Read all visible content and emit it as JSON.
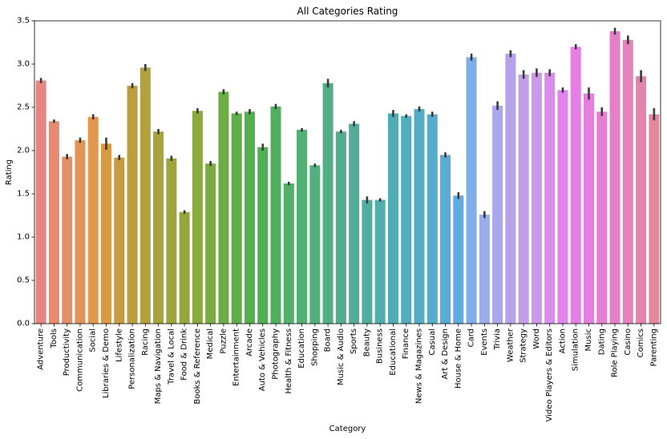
{
  "chart_data": {
    "type": "bar",
    "title": "All Categories Rating",
    "xlabel": "Category",
    "ylabel": "Rating",
    "ylim": [
      0,
      3.5
    ],
    "yticks": [
      "0.0",
      "0.5",
      "1.0",
      "1.5",
      "2.0",
      "2.5",
      "3.0",
      "3.5"
    ],
    "grid": false,
    "legend": "none",
    "categories": [
      "Adventure",
      "Tools",
      "Productivity",
      "Communication",
      "Social",
      "Libraries & Demo",
      "Lifestyle",
      "Personalization",
      "Racing",
      "Maps & Navigation",
      "Travel & Local",
      "Food & Drink",
      "Books & Reference",
      "Medical",
      "Puzzle",
      "Entertainment",
      "Arcade",
      "Auto & Vehicles",
      "Photography",
      "Health & Fitness",
      "Education",
      "Shopping",
      "Board",
      "Music & Audio",
      "Sports",
      "Beauty",
      "Business",
      "Educational",
      "Finance",
      "News & Magazines",
      "Casual",
      "Art & Design",
      "House & Home",
      "Card",
      "Events",
      "Trivia",
      "Weather",
      "Strategy",
      "Word",
      "Video Players & Editors",
      "Action",
      "Simulation",
      "Music",
      "Dating",
      "Role Playing",
      "Casino",
      "Comics",
      "Parenting"
    ],
    "values": [
      2.81,
      2.34,
      1.93,
      2.12,
      2.39,
      2.08,
      1.92,
      2.75,
      2.96,
      2.22,
      1.91,
      1.29,
      2.46,
      1.85,
      2.68,
      2.43,
      2.45,
      2.04,
      2.51,
      1.62,
      2.24,
      1.83,
      2.78,
      2.22,
      2.31,
      1.43,
      1.43,
      2.43,
      2.4,
      2.48,
      2.42,
      1.95,
      1.48,
      3.08,
      1.26,
      2.52,
      3.12,
      2.88,
      2.9,
      2.9,
      2.7,
      3.2,
      2.66,
      2.45,
      3.38,
      3.28,
      2.86,
      2.42
    ],
    "errors": [
      0.03,
      0.02,
      0.03,
      0.03,
      0.03,
      0.07,
      0.03,
      0.03,
      0.04,
      0.03,
      0.03,
      0.02,
      0.03,
      0.03,
      0.03,
      0.02,
      0.03,
      0.04,
      0.03,
      0.02,
      0.02,
      0.02,
      0.05,
      0.02,
      0.03,
      0.04,
      0.02,
      0.04,
      0.02,
      0.03,
      0.03,
      0.03,
      0.04,
      0.04,
      0.04,
      0.05,
      0.04,
      0.05,
      0.05,
      0.04,
      0.03,
      0.03,
      0.07,
      0.05,
      0.04,
      0.05,
      0.07,
      0.07
    ],
    "colors": [
      "#e88582",
      "#e88a70",
      "#e48e63",
      "#e39357",
      "#e2964e",
      "#d99a46",
      "#c89a42",
      "#bd9e3f",
      "#b3a13c",
      "#a8a43c",
      "#9fa53b",
      "#95a73c",
      "#8aa93f",
      "#7aab42",
      "#6cad45",
      "#5fae48",
      "#54b04c",
      "#4eb052",
      "#50b05e",
      "#52b068",
      "#52b073",
      "#52b07d",
      "#52ae87",
      "#52ad90",
      "#52ac99",
      "#52aca2",
      "#52acab",
      "#50acb3",
      "#52adbc",
      "#54adc4",
      "#55adcd",
      "#58acd6",
      "#60abe1",
      "#80aee9",
      "#9aace9",
      "#aaa8ea",
      "#b4a2ea",
      "#bf9eea",
      "#cd9aea",
      "#d88dea",
      "#e083ea",
      "#e57fe5",
      "#e57edc",
      "#e57fd2",
      "#e580c8",
      "#e581bb",
      "#e583ad",
      "#e6869a"
    ],
    "error_color": "#3a3a3a"
  }
}
